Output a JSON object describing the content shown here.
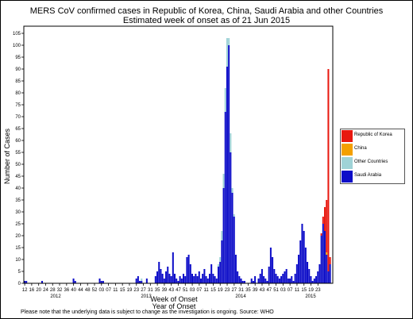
{
  "chart_data": {
    "type": "bar",
    "stacked": true,
    "title": "MERS CoV confirmed cases in Republic of Korea, China, Saudi Arabia and other Countries",
    "subtitle": "Estimated week of onset as of 21 Jun 2015",
    "xlabel": "Week of Onset",
    "xlabel2": "Year of Onset",
    "ylabel": "Number of Cases",
    "ylim": [
      0,
      108
    ],
    "yticks": [
      0,
      5,
      10,
      15,
      20,
      25,
      30,
      35,
      40,
      45,
      50,
      55,
      60,
      65,
      70,
      75,
      80,
      85,
      90,
      95,
      100,
      105
    ],
    "week_tick_labels": [
      "12",
      "16",
      "20",
      "24",
      "28",
      "32",
      "36",
      "40",
      "44",
      "48",
      "52",
      "03",
      "07",
      "11",
      "15",
      "19",
      "23",
      "27",
      "31",
      "35",
      "39",
      "43",
      "47",
      "51",
      "03",
      "07",
      "11",
      "15",
      "19",
      "23",
      "27",
      "31",
      "35",
      "39",
      "43",
      "47",
      "51",
      "03",
      "07",
      "11",
      "15",
      "19",
      "23"
    ],
    "year_labels": [
      "2012",
      "2013",
      "2014",
      "2015"
    ],
    "legend_position": "right",
    "grid": false,
    "series": [
      {
        "name": "Republic of Korea",
        "color": "#e8180f",
        "values": [
          0,
          0,
          0,
          0,
          0,
          0,
          0,
          0,
          0,
          0,
          0,
          0,
          0,
          0,
          0,
          0,
          0,
          0,
          0,
          0,
          0,
          0,
          0,
          0,
          0,
          0,
          0,
          0,
          0,
          0,
          0,
          0,
          0,
          0,
          0,
          0,
          0,
          0,
          0,
          0,
          0,
          0,
          0,
          0,
          0,
          0,
          0,
          0,
          0,
          0,
          0,
          0,
          0,
          0,
          0,
          0,
          0,
          0,
          0,
          0,
          0,
          0,
          0,
          0,
          0,
          0,
          0,
          0,
          0,
          0,
          0,
          0,
          0,
          0,
          0,
          0,
          0,
          0,
          0,
          0,
          0,
          0,
          0,
          0,
          0,
          0,
          0,
          0,
          0,
          0,
          0,
          0,
          0,
          0,
          0,
          0,
          0,
          0,
          0,
          0,
          0,
          0,
          0,
          0,
          0,
          0,
          0,
          0,
          0,
          0,
          0,
          0,
          0,
          0,
          0,
          0,
          0,
          0,
          0,
          0,
          0,
          0,
          0,
          0,
          0,
          0,
          0,
          0,
          0,
          0,
          0,
          0,
          0,
          0,
          0,
          0,
          0,
          0,
          0,
          0,
          0,
          0,
          0,
          0,
          0,
          0,
          0,
          0,
          0,
          0,
          0,
          0,
          0,
          0,
          0,
          0,
          0,
          0,
          0,
          0,
          0,
          0,
          0,
          0,
          0,
          0,
          0,
          0,
          0,
          0,
          1,
          3,
          10,
          22,
          85,
          3,
          0
        ]
      },
      {
        "name": "China",
        "color": "#f4a000",
        "values": [
          0,
          0,
          0,
          0,
          0,
          0,
          0,
          0,
          0,
          0,
          0,
          0,
          0,
          0,
          0,
          0,
          0,
          0,
          0,
          0,
          0,
          0,
          0,
          0,
          0,
          0,
          0,
          0,
          0,
          0,
          0,
          0,
          0,
          0,
          0,
          0,
          0,
          0,
          0,
          0,
          0,
          0,
          0,
          0,
          0,
          0,
          0,
          0,
          0,
          0,
          0,
          0,
          0,
          0,
          0,
          0,
          0,
          0,
          0,
          0,
          0,
          0,
          0,
          0,
          0,
          0,
          0,
          0,
          0,
          0,
          0,
          0,
          0,
          0,
          0,
          0,
          0,
          0,
          0,
          0,
          0,
          0,
          0,
          0,
          0,
          0,
          0,
          0,
          0,
          0,
          0,
          0,
          0,
          0,
          0,
          0,
          0,
          0,
          0,
          0,
          0,
          0,
          0,
          0,
          0,
          0,
          0,
          0,
          0,
          0,
          0,
          0,
          0,
          0,
          0,
          0,
          0,
          0,
          0,
          0,
          0,
          0,
          0,
          0,
          0,
          0,
          0,
          0,
          0,
          0,
          0,
          0,
          0,
          0,
          0,
          0,
          0,
          0,
          0,
          0,
          0,
          0,
          0,
          0,
          0,
          0,
          0,
          0,
          0,
          0,
          0,
          0,
          0,
          0,
          0,
          0,
          0,
          0,
          0,
          0,
          0,
          0,
          0,
          0,
          0,
          0,
          0,
          0,
          0,
          0,
          0,
          0,
          0,
          1,
          0,
          0,
          0
        ]
      },
      {
        "name": "Other Countries",
        "color": "#9fd3d7",
        "values": [
          0,
          0,
          0,
          0,
          0,
          0,
          0,
          0,
          0,
          0,
          0,
          0,
          0,
          0,
          0,
          0,
          0,
          0,
          0,
          0,
          0,
          0,
          0,
          0,
          0,
          0,
          0,
          0,
          0,
          0,
          0,
          0,
          0,
          0,
          0,
          0,
          0,
          0,
          0,
          0,
          0,
          0,
          0,
          0,
          0,
          0,
          0,
          0,
          0,
          0,
          0,
          0,
          0,
          0,
          0,
          0,
          0,
          0,
          0,
          0,
          0,
          0,
          0,
          0,
          0,
          0,
          0,
          1,
          0,
          0,
          0,
          0,
          0,
          0,
          0,
          0,
          0,
          0,
          0,
          0,
          0,
          0,
          0,
          0,
          0,
          0,
          0,
          0,
          0,
          0,
          0,
          0,
          0,
          0,
          0,
          0,
          0,
          0,
          0,
          0,
          0,
          0,
          0,
          0,
          0,
          0,
          0,
          0,
          0,
          0,
          0,
          1,
          2,
          4,
          6,
          10,
          12,
          3,
          8,
          2,
          1,
          0,
          0,
          0,
          0,
          0,
          0,
          0,
          0,
          0,
          0,
          0,
          0,
          0,
          0,
          0,
          0,
          0,
          0,
          0,
          0,
          0,
          0,
          0,
          0,
          0,
          0,
          0,
          0,
          0,
          0,
          0,
          0,
          0,
          0,
          0,
          0,
          0,
          0,
          0,
          0,
          0,
          0,
          0,
          0,
          0,
          0,
          0,
          0,
          0,
          0,
          0,
          0
        ]
      },
      {
        "name": "Saudi Arabia",
        "color": "#0d0dc8",
        "values": [
          1,
          1,
          0,
          0,
          0,
          0,
          0,
          0,
          0,
          0,
          1,
          0,
          0,
          0,
          0,
          0,
          0,
          0,
          0,
          0,
          0,
          0,
          0,
          0,
          0,
          0,
          0,
          0,
          2,
          1,
          0,
          0,
          0,
          0,
          0,
          0,
          0,
          0,
          0,
          0,
          0,
          0,
          0,
          2,
          1,
          1,
          0,
          0,
          0,
          0,
          0,
          0,
          0,
          0,
          0,
          0,
          0,
          0,
          0,
          0,
          0,
          0,
          0,
          0,
          2,
          3,
          1,
          1,
          0,
          0,
          2,
          0,
          0,
          0,
          0,
          3,
          5,
          9,
          6,
          4,
          2,
          5,
          7,
          4,
          3,
          13,
          4,
          2,
          1,
          3,
          2,
          4,
          3,
          11,
          12,
          8,
          4,
          3,
          4,
          3,
          5,
          2,
          4,
          6,
          3,
          2,
          4,
          8,
          4,
          3,
          2,
          7,
          9,
          18,
          40,
          72,
          91,
          100,
          55,
          38,
          28,
          12,
          5,
          3,
          2,
          1,
          1,
          0,
          0,
          0,
          2,
          1,
          3,
          0,
          2,
          4,
          6,
          3,
          2,
          1,
          7,
          15,
          11,
          6,
          4,
          3,
          2,
          3,
          4,
          5,
          6,
          2,
          2,
          3,
          1,
          4,
          8,
          12,
          18,
          25,
          22,
          15,
          9,
          6,
          3,
          1,
          2,
          3,
          5,
          8,
          20,
          25,
          22,
          12,
          5,
          8,
          0
        ]
      }
    ]
  },
  "legend": [
    {
      "label": "Republic of Korea",
      "color": "#e8180f"
    },
    {
      "label": "China",
      "color": "#f4a000"
    },
    {
      "label": "Other Countries",
      "color": "#9fd3d7"
    },
    {
      "label": "Saudi Arabia",
      "color": "#0d0dc8"
    }
  ],
  "footer": "Please note that the underlying data is subject to change as the investigation is ongoing. Source: WHO"
}
